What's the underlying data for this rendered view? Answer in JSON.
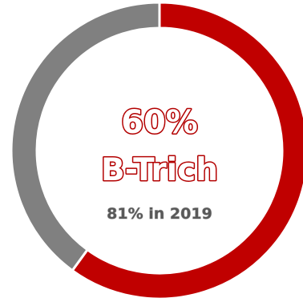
{
  "chart_data": {
    "type": "pie",
    "donut": true,
    "series": [
      {
        "values": [
          60,
          40
        ]
      }
    ],
    "colors": [
      "#c00000",
      "#808080"
    ],
    "center_labels": {
      "percent": "60%",
      "name": "B-Trich",
      "comparison": "81% in 2019"
    }
  },
  "colors": {
    "accent": "#c00000",
    "accent_outline": "#b30000",
    "secondary": "#808080",
    "sub_text": "#595959",
    "background": "#ffffff"
  }
}
